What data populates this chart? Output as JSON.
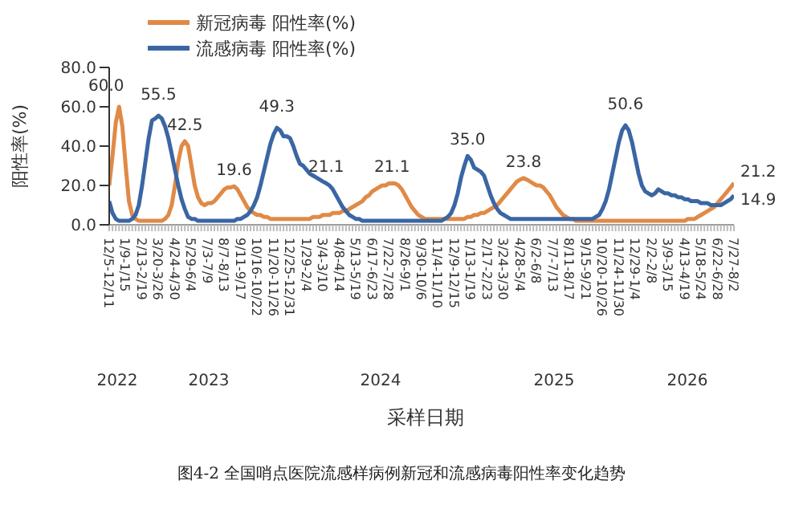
{
  "chart_data": {
    "type": "line",
    "title": "图4-2 全国哨点医院流感样病例新冠和流感病毒阳性率变化趋势",
    "xlabel": "采样日期",
    "ylabel": "阳性率(%)",
    "categories": [
      "12/5-12/11",
      null,
      null,
      null,
      null,
      "1/9-1/15",
      null,
      null,
      null,
      null,
      "2/13-2/19",
      null,
      null,
      null,
      null,
      "3/20-3/26",
      null,
      null,
      null,
      null,
      "4/24-4/30",
      null,
      null,
      null,
      null,
      "5/29-6/4",
      null,
      null,
      null,
      null,
      "7/3-7/9",
      null,
      null,
      null,
      null,
      "8/7-8/13",
      null,
      null,
      null,
      null,
      "9/11-9/17",
      null,
      null,
      null,
      null,
      "10/16-10/22",
      null,
      null,
      null,
      null,
      "11/20-11/26",
      null,
      null,
      null,
      null,
      "12/25-12/31",
      null,
      null,
      null,
      null,
      "1/29-2/4",
      null,
      null,
      null,
      null,
      "3/4-3/10",
      null,
      null,
      null,
      null,
      "4/8-4/14",
      null,
      null,
      null,
      null,
      "5/13-5/19",
      null,
      null,
      null,
      null,
      "6/17-6/23",
      null,
      null,
      null,
      null,
      "7/22-7/28",
      null,
      null,
      null,
      null,
      "8/26-9/1",
      null,
      null,
      null,
      null,
      "9/30-10/6",
      null,
      null,
      null,
      null,
      "11/4-11/10",
      null,
      null,
      null,
      null,
      "12/9-12/15",
      null,
      null,
      null,
      null,
      "1/13-1/19",
      null,
      null,
      null,
      null,
      "2/17-2/23",
      null,
      null,
      null,
      null,
      "3/24-3/30",
      null,
      null,
      null,
      null,
      "4/28-5/4",
      null,
      null,
      null,
      null,
      "6/2-6/8",
      null,
      null,
      null,
      null,
      "7/7-7/13",
      null,
      null,
      null,
      null,
      "8/11-8/17",
      null,
      null,
      null,
      null,
      "9/15-9/21",
      null,
      null,
      null,
      null,
      "10/20-10/26",
      null,
      null,
      null,
      null,
      "11/24-11/30",
      null,
      null,
      null,
      null,
      "12/29-1/4",
      null,
      null,
      null,
      null,
      "2/2-2/8",
      null,
      null,
      null,
      null,
      "3/9-3/15",
      null,
      null,
      null,
      null,
      "4/13-4/19",
      null,
      null,
      null,
      null,
      "5/18-5/24",
      null,
      null,
      null,
      null,
      "6/22-6/28",
      null,
      null,
      null,
      null,
      "7/27-8/2"
    ],
    "series": [
      {
        "name": "新冠病毒 阳性率(%)",
        "color": "#e08a47",
        "values": [
          20,
          35,
          52,
          60,
          50,
          30,
          12,
          5,
          3,
          2,
          2,
          2,
          2,
          2,
          2,
          2,
          2,
          3,
          5,
          10,
          20,
          32,
          40,
          42.5,
          40,
          30,
          20,
          14,
          11,
          10,
          11,
          11,
          12,
          14,
          16,
          18,
          19,
          19,
          19.6,
          18,
          15,
          12,
          9,
          7,
          6,
          5,
          5,
          4,
          4,
          3,
          3,
          3,
          3,
          3,
          3,
          3,
          3,
          3,
          3,
          3,
          3,
          3,
          4,
          4,
          4,
          5,
          5,
          5,
          6,
          6,
          6,
          7,
          7,
          8,
          9,
          10,
          11,
          12,
          14,
          15,
          17,
          18,
          19,
          20,
          20,
          21,
          21.1,
          21,
          20,
          18,
          15,
          12,
          9,
          7,
          5,
          4,
          3,
          3,
          3,
          3,
          3,
          3,
          3,
          3,
          3,
          3,
          3,
          3,
          3,
          4,
          4,
          5,
          5,
          6,
          6,
          7,
          8,
          9,
          10,
          12,
          14,
          16,
          18,
          20,
          22,
          23,
          23.8,
          23,
          22,
          21,
          20,
          20,
          19,
          17,
          15,
          12,
          9,
          7,
          5,
          4,
          3,
          3,
          2,
          2,
          2,
          2,
          2,
          2,
          2,
          2,
          2,
          2,
          2,
          2,
          2,
          2,
          2,
          2,
          2,
          2,
          2,
          2,
          2,
          2,
          2,
          2,
          2,
          2,
          2,
          2,
          2,
          2,
          2,
          2,
          2,
          2,
          3,
          3,
          3,
          4,
          5,
          6,
          7,
          8,
          9,
          11,
          13,
          15,
          17,
          19,
          21.2
        ],
        "value_labels": [
          null,
          null,
          null,
          "60.0",
          null,
          null,
          null,
          null,
          null,
          null,
          null,
          null,
          null,
          null,
          null,
          null,
          null,
          null,
          null,
          null,
          null,
          null,
          null,
          "42.5",
          null,
          null,
          null,
          null,
          null,
          null,
          null,
          null,
          null,
          null,
          null,
          null,
          null,
          null,
          "19.6",
          null,
          null,
          null,
          null,
          null,
          null,
          null,
          null,
          null,
          null,
          null,
          null,
          null,
          null,
          null,
          null,
          null,
          null,
          null,
          null,
          null,
          null,
          null,
          null,
          null,
          null,
          null,
          null,
          null,
          null,
          null,
          null,
          null,
          null,
          null,
          null,
          null,
          null,
          null,
          null,
          null,
          null,
          null,
          null,
          null,
          null,
          null,
          "21.1",
          null,
          null,
          null,
          null,
          null,
          null,
          null,
          null,
          null,
          null,
          null,
          null,
          null,
          null,
          null,
          null,
          null,
          null,
          null,
          null,
          null,
          null,
          null,
          null,
          null,
          null,
          null,
          null,
          null,
          null,
          null,
          null,
          null,
          null,
          null,
          null,
          null,
          null,
          null,
          "23.8",
          null,
          null,
          null,
          null,
          null,
          null,
          null,
          null,
          null,
          null,
          null,
          null,
          null,
          null,
          null,
          null,
          null,
          null,
          null,
          null,
          null,
          null,
          null,
          null,
          null,
          null,
          null,
          null,
          null,
          null,
          null,
          null,
          null,
          null,
          null,
          null,
          null,
          null,
          null,
          null,
          null,
          null,
          null,
          null,
          null,
          null,
          null,
          null,
          null,
          null,
          null,
          null,
          null,
          null,
          null,
          null,
          null,
          null,
          null,
          null,
          null,
          null,
          null,
          "21.2"
        ]
      },
      {
        "name": "流感病毒 阳性率(%)",
        "color": "#3a66a3",
        "values": [
          12,
          6,
          3,
          2,
          2,
          2,
          2,
          3,
          5,
          10,
          20,
          32,
          44,
          53,
          54,
          55.5,
          54,
          50,
          44,
          36,
          28,
          20,
          13,
          8,
          4,
          3,
          3,
          2,
          2,
          2,
          2,
          2,
          2,
          2,
          2,
          2,
          2,
          2,
          2,
          3,
          3,
          4,
          5,
          7,
          10,
          14,
          20,
          27,
          34,
          41,
          46,
          49.3,
          48,
          45,
          45,
          44,
          40,
          35,
          31,
          30,
          28,
          26,
          25,
          24,
          23,
          22,
          21.1,
          20,
          18,
          15,
          12,
          9,
          7,
          5,
          4,
          3,
          3,
          2,
          2,
          2,
          2,
          2,
          2,
          2,
          2,
          2,
          2,
          2,
          2,
          2,
          2,
          2,
          2,
          2,
          2,
          2,
          2,
          2,
          2,
          2,
          2,
          2,
          3,
          4,
          6,
          10,
          16,
          24,
          30,
          35,
          33,
          29,
          28,
          27,
          25,
          20,
          15,
          11,
          8,
          6,
          5,
          4,
          3,
          3,
          3,
          3,
          3,
          3,
          3,
          3,
          3,
          3,
          3,
          3,
          3,
          3,
          3,
          3,
          3,
          3,
          3,
          3,
          3,
          3,
          3,
          3,
          3,
          3,
          4,
          5,
          8,
          12,
          18,
          26,
          34,
          42,
          48,
          50.6,
          48,
          42,
          34,
          26,
          20,
          17,
          16,
          15,
          16,
          18,
          17,
          16,
          16,
          15,
          15,
          14,
          14,
          13,
          13,
          12,
          12,
          12,
          11,
          11,
          11,
          10,
          10,
          10,
          10,
          11,
          12,
          13,
          14.9
        ],
        "value_labels": [
          null,
          null,
          null,
          null,
          null,
          null,
          null,
          null,
          null,
          null,
          null,
          null,
          null,
          null,
          null,
          "55.5",
          null,
          null,
          null,
          null,
          null,
          null,
          null,
          null,
          null,
          null,
          null,
          null,
          null,
          null,
          null,
          null,
          null,
          null,
          null,
          null,
          null,
          null,
          null,
          null,
          null,
          null,
          null,
          null,
          null,
          null,
          null,
          null,
          null,
          null,
          null,
          "49.3",
          null,
          null,
          null,
          null,
          null,
          null,
          null,
          null,
          null,
          null,
          null,
          null,
          null,
          null,
          "21.1",
          null,
          null,
          null,
          null,
          null,
          null,
          null,
          null,
          null,
          null,
          null,
          null,
          null,
          null,
          null,
          null,
          null,
          null,
          null,
          null,
          null,
          null,
          null,
          null,
          null,
          null,
          null,
          null,
          null,
          null,
          null,
          null,
          null,
          null,
          null,
          null,
          null,
          null,
          null,
          null,
          null,
          null,
          "35.0",
          null,
          null,
          null,
          null,
          null,
          null,
          null,
          null,
          null,
          null,
          null,
          null,
          null,
          null,
          null,
          null,
          null,
          null,
          null,
          null,
          null,
          null,
          null,
          null,
          null,
          null,
          null,
          null,
          null,
          null,
          null,
          null,
          null,
          null,
          null,
          null,
          null,
          null,
          null,
          null,
          null,
          null,
          null,
          null,
          null,
          null,
          null,
          "50.6",
          null,
          null,
          null,
          null,
          null,
          null,
          null,
          null,
          null,
          null,
          null,
          null,
          null,
          null,
          null,
          null,
          null,
          null,
          null,
          null,
          null,
          null,
          null,
          null,
          null,
          null,
          null,
          null,
          null,
          null,
          null,
          null,
          "14.9"
        ]
      }
    ],
    "ylim": [
      0,
      80
    ],
    "yticks": [
      {
        "value": 0,
        "label": "0.0"
      },
      {
        "value": 20,
        "label": "20.0"
      },
      {
        "value": 40,
        "label": "40.0"
      },
      {
        "value": 60,
        "label": "60.0"
      },
      {
        "value": 80,
        "label": "80.0"
      }
    ],
    "grid": false,
    "legend": "top left",
    "marker": "none",
    "line_style": "solid",
    "annotations": [
      "2022",
      "2023",
      "2024",
      "2025",
      "2026"
    ]
  }
}
